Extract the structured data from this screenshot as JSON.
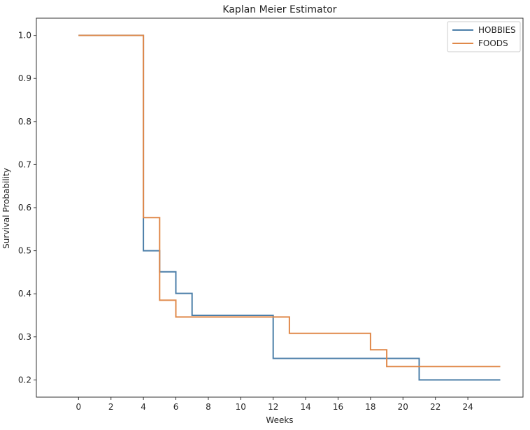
{
  "chart_data": {
    "type": "line",
    "title": "Kaplan Meier Estimator",
    "xlabel": "Weeks",
    "ylabel": "Survival Probability",
    "xlim": [
      -2.6,
      27.4
    ],
    "ylim": [
      0.16,
      1.04
    ],
    "xticks": [
      "0",
      "2",
      "4",
      "6",
      "8",
      "10",
      "12",
      "14",
      "16",
      "18",
      "20",
      "22",
      "24"
    ],
    "yticks": [
      "0.2",
      "0.3",
      "0.4",
      "0.5",
      "0.6",
      "0.7",
      "0.8",
      "0.9",
      "1.0"
    ],
    "grid": false,
    "legend_position": "top-right",
    "step": "post",
    "series": [
      {
        "name": "HOBBIES",
        "color": "#4c7fa9",
        "x": [
          0,
          4,
          5,
          6,
          7,
          12,
          21,
          26
        ],
        "y": [
          1.0,
          0.5,
          0.451,
          0.401,
          0.35,
          0.25,
          0.2,
          0.2
        ]
      },
      {
        "name": "FOODS",
        "color": "#e0894a",
        "x": [
          0,
          4,
          5,
          6,
          13,
          18,
          19,
          26
        ],
        "y": [
          1.0,
          0.577,
          0.385,
          0.346,
          0.308,
          0.27,
          0.231,
          0.231
        ]
      }
    ]
  }
}
